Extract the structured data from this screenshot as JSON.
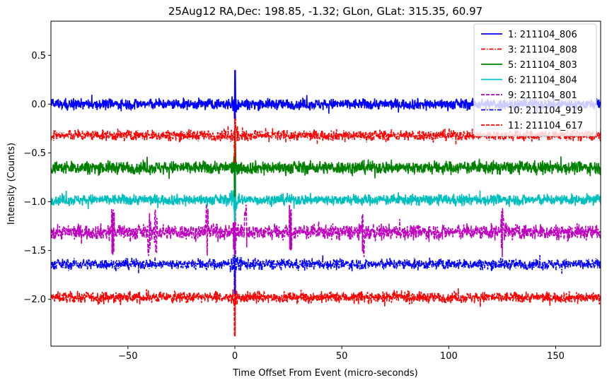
{
  "chart_data": {
    "type": "line",
    "title": "25Aug12 RA,Dec:  198.85,  -1.32; GLon, GLat:  315.35,  60.97",
    "xlabel": "Time Offset From Event (micro-seconds)",
    "ylabel": "Intensity (Counts)",
    "xlim": [
      -86,
      171
    ],
    "ylim": [
      -2.48,
      0.85
    ],
    "xticks": [
      -50,
      0,
      50,
      100,
      150
    ],
    "xtick_labels": [
      "−50",
      "0",
      "50",
      "100",
      "150"
    ],
    "yticks": [
      0.5,
      0.0,
      -0.5,
      -1.0,
      -1.5,
      -2.0
    ],
    "ytick_labels": [
      "0.5",
      "0.0",
      "−0.5",
      "−1.0",
      "−1.5",
      "−2.0"
    ],
    "legend_position": "top-right",
    "event_x": 0,
    "series": [
      {
        "name": "1: 211104_806",
        "color": "#0000ff",
        "style": "solid",
        "offset": 0.0,
        "noise_amplitude": 0.05,
        "spike_max": 0.35,
        "spike_min": -0.15
      },
      {
        "name": "3: 211104_808",
        "color": "#ff0000",
        "style": "dashdot",
        "offset": -0.32,
        "noise_amplitude": 0.05,
        "spike_max": -0.05,
        "spike_min": -0.6
      },
      {
        "name": "5: 211104_803",
        "color": "#008000",
        "style": "solid",
        "offset": -0.65,
        "noise_amplitude": 0.06,
        "spike_max": -0.3,
        "spike_min": -0.95
      },
      {
        "name": "6: 211104_804",
        "color": "#00bfbf",
        "style": "solid",
        "offset": -0.98,
        "noise_amplitude": 0.05,
        "spike_max": -0.6,
        "spike_min": -1.2
      },
      {
        "name": "9: 211104_801",
        "color": "#bf00bf",
        "style": "dashed",
        "offset": -1.31,
        "noise_amplitude": 0.07,
        "spike_max": -1.05,
        "spike_min": -1.55
      },
      {
        "name": "10: 211104_919",
        "color": "#0000ff",
        "style": "dashdot",
        "offset": -1.64,
        "noise_amplitude": 0.05,
        "spike_max": -1.35,
        "spike_min": -1.95
      },
      {
        "name": "11: 211104_617",
        "color": "#ff0000",
        "style": "dashed",
        "offset": -1.98,
        "noise_amplitude": 0.05,
        "spike_max": -1.7,
        "spike_min": -2.38
      }
    ]
  }
}
